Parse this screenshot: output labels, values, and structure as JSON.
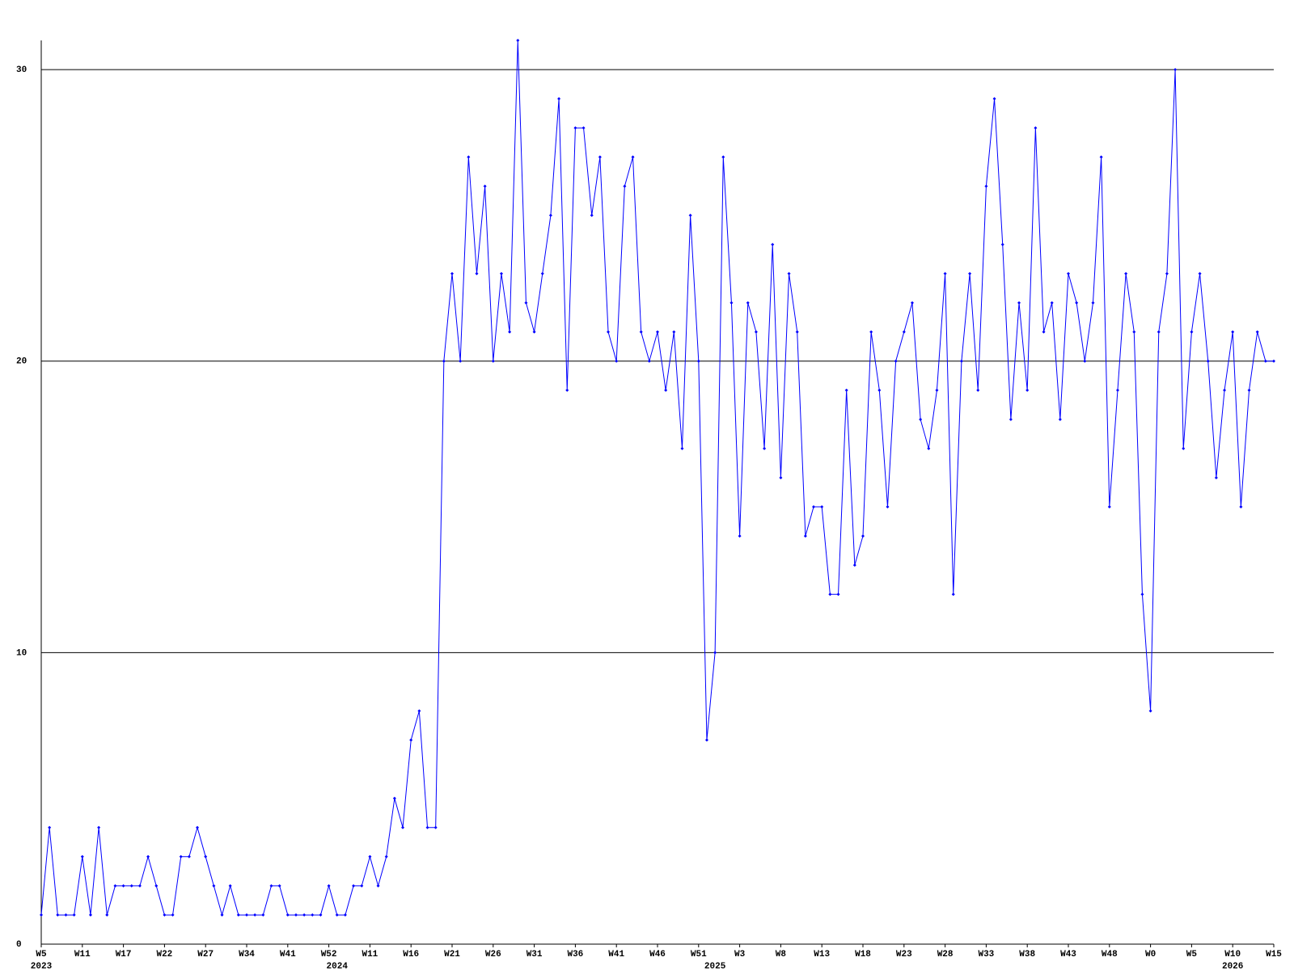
{
  "chart_data": {
    "type": "line",
    "categories": [
      "W5",
      null,
      null,
      null,
      null,
      "W11",
      null,
      null,
      null,
      null,
      "W17",
      null,
      null,
      null,
      null,
      "W22",
      null,
      null,
      null,
      null,
      "W27",
      null,
      null,
      null,
      null,
      "W34",
      null,
      null,
      null,
      null,
      "W41",
      null,
      null,
      null,
      null,
      "W52",
      null,
      null,
      null,
      null,
      "W11",
      null,
      null,
      null,
      null,
      "W16",
      null,
      null,
      null,
      null,
      "W21",
      null,
      null,
      null,
      null,
      "W26",
      null,
      null,
      null,
      null,
      "W31",
      null,
      null,
      null,
      null,
      "W36",
      null,
      null,
      null,
      null,
      "W41",
      null,
      null,
      null,
      null,
      "W46",
      null,
      null,
      null,
      null,
      "W51",
      null,
      null,
      null,
      null,
      "W3",
      null,
      null,
      null,
      null,
      "W8",
      null,
      null,
      null,
      null,
      "W13",
      null,
      null,
      null,
      null,
      "W18",
      null,
      null,
      null,
      null,
      "W23",
      null,
      null,
      null,
      null,
      "W28",
      null,
      null,
      null,
      null,
      "W33",
      null,
      null,
      null,
      null,
      "W38",
      null,
      null,
      null,
      null,
      "W43",
      null,
      null,
      null,
      null,
      "W48",
      null,
      null,
      null,
      null,
      "W0",
      null,
      null,
      null,
      null,
      "W5",
      null,
      null,
      null,
      null,
      "W10",
      null,
      null,
      null,
      null,
      "W15"
    ],
    "year_labels": [
      "2023",
      null,
      null,
      null,
      null,
      null,
      null,
      null,
      null,
      null,
      null,
      null,
      null,
      null,
      null,
      null,
      null,
      null,
      null,
      null,
      null,
      null,
      null,
      null,
      null,
      null,
      null,
      null,
      null,
      null,
      null,
      null,
      null,
      null,
      null,
      null,
      "2024",
      null,
      null,
      null,
      null,
      null,
      null,
      null,
      null,
      null,
      null,
      null,
      null,
      null,
      null,
      null,
      null,
      null,
      null,
      null,
      null,
      null,
      null,
      null,
      null,
      null,
      null,
      null,
      null,
      null,
      null,
      null,
      null,
      null,
      null,
      null,
      null,
      null,
      null,
      null,
      null,
      null,
      null,
      null,
      null,
      null,
      "2025",
      null,
      null,
      null,
      null,
      null,
      null,
      null,
      null,
      null,
      null,
      null,
      null,
      null,
      null,
      null,
      null,
      null,
      null,
      null,
      null,
      null,
      null,
      null,
      null,
      null,
      null,
      null,
      null,
      null,
      null,
      null,
      null,
      null,
      null,
      null,
      null,
      null,
      null,
      null,
      null,
      null,
      null,
      null,
      null,
      null,
      null,
      null,
      null,
      null,
      null,
      null,
      null,
      null,
      null,
      null,
      null,
      null,
      null,
      null,
      null,
      null,
      null,
      "2026",
      null,
      null,
      null,
      null,
      null,
      null,
      null,
      null,
      null,
      null,
      null,
      null,
      null,
      null,
      null
    ],
    "series": [
      {
        "color": "#0000ff",
        "values": [
          1,
          4,
          1,
          1,
          1,
          3,
          1,
          4,
          1,
          2,
          2,
          2,
          2,
          3,
          2,
          1,
          1,
          3,
          3,
          4,
          3,
          2,
          1,
          2,
          1,
          1,
          1,
          1,
          2,
          2,
          1,
          1,
          1,
          1,
          1,
          2,
          1,
          1,
          2,
          2,
          3,
          2,
          3,
          5,
          4,
          7,
          8,
          4,
          4,
          20,
          23,
          20,
          27,
          23,
          26,
          20,
          23,
          21,
          31,
          22,
          21,
          23,
          25,
          29,
          19,
          28,
          28,
          25,
          27,
          21,
          20,
          26,
          27,
          21,
          20,
          21,
          19,
          21,
          17,
          25,
          20,
          7,
          10,
          27,
          22,
          14,
          22,
          21,
          17,
          24,
          16,
          23,
          21,
          14,
          15,
          15,
          12,
          12,
          19,
          13,
          14,
          21,
          19,
          15,
          20,
          21,
          22,
          18,
          17,
          19,
          23,
          12,
          20,
          23,
          19,
          26,
          29,
          24,
          18,
          22,
          19,
          28,
          21,
          22,
          18,
          23,
          22,
          20,
          22,
          27,
          15,
          19,
          23,
          21,
          12,
          8,
          21,
          23,
          30,
          17,
          21,
          23,
          20,
          16,
          19,
          21,
          15,
          19,
          21,
          20,
          20
        ]
      }
    ],
    "ylim": [
      0,
      31
    ],
    "yticks": [
      0,
      10,
      20,
      30
    ],
    "grid": true
  }
}
